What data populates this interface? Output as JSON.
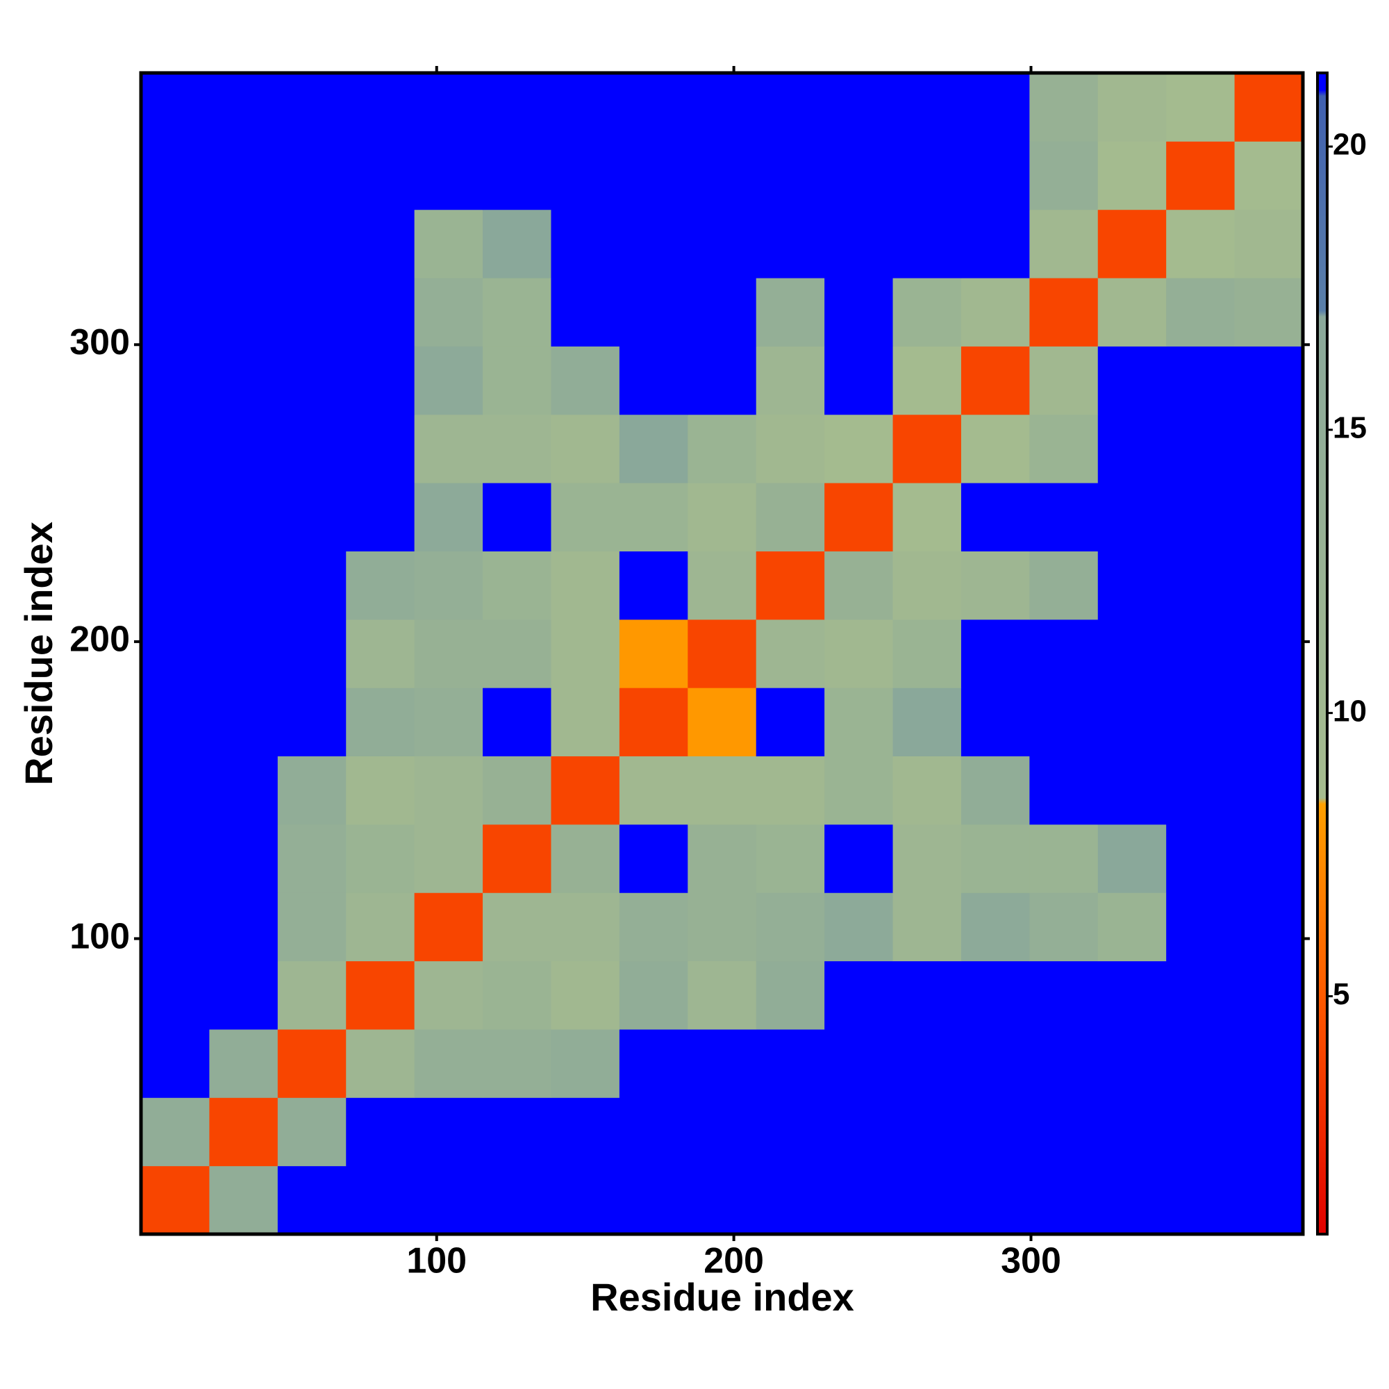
{
  "chart_data": {
    "type": "heatmap",
    "x_label": "Residue index",
    "y_label": "Residue index",
    "xlim": [
      0.5,
      391.5
    ],
    "ylim": [
      0.5,
      391.5
    ],
    "xticks": [
      100,
      200,
      300
    ],
    "yticks": [
      100,
      200,
      300
    ],
    "xbins": [
      0.5,
      23.5,
      46.5,
      69.5,
      92.5,
      115.5,
      138.5,
      161.5,
      184.5,
      207.5,
      230.5,
      253.5,
      276.5,
      299.5,
      322.5,
      345.5,
      368.5,
      391.5
    ],
    "ybins": [
      0.5,
      23.5,
      46.5,
      69.5,
      92.5,
      115.5,
      138.5,
      161.5,
      184.5,
      207.5,
      230.5,
      253.5,
      276.5,
      299.5,
      322.5,
      345.5,
      368.5,
      391.5
    ],
    "values": [
      [
        4,
        15,
        21,
        21,
        21,
        21,
        21,
        21,
        21,
        21,
        21,
        21,
        21,
        21,
        21,
        21,
        21
      ],
      [
        15,
        4,
        15,
        21,
        21,
        21,
        21,
        21,
        21,
        21,
        21,
        21,
        21,
        21,
        21,
        21,
        21
      ],
      [
        21,
        15,
        4,
        11,
        14,
        14,
        15,
        21,
        21,
        21,
        21,
        21,
        21,
        21,
        21,
        21,
        21
      ],
      [
        21,
        21,
        11,
        4,
        11,
        12,
        10,
        15,
        11,
        15,
        21,
        21,
        21,
        21,
        21,
        21,
        21
      ],
      [
        21,
        21,
        14,
        11,
        4,
        11,
        11,
        14,
        13,
        14,
        16,
        11,
        16,
        14,
        12,
        21,
        21
      ],
      [
        21,
        21,
        14,
        12,
        11,
        4,
        13,
        21,
        13,
        12,
        21,
        11,
        12,
        12,
        17,
        21,
        21
      ],
      [
        21,
        21,
        15,
        10,
        11,
        13,
        4,
        10,
        10,
        10,
        12,
        10,
        15,
        21,
        21,
        21,
        21
      ],
      [
        21,
        21,
        21,
        15,
        14,
        21,
        10,
        4,
        8,
        21,
        12,
        17,
        21,
        21,
        21,
        21,
        21
      ],
      [
        21,
        21,
        21,
        11,
        13,
        13,
        10,
        8,
        4,
        11,
        10,
        12,
        21,
        21,
        21,
        21,
        21
      ],
      [
        21,
        21,
        21,
        15,
        14,
        12,
        10,
        21,
        11,
        4,
        13,
        10,
        11,
        14,
        21,
        21,
        21
      ],
      [
        21,
        21,
        21,
        21,
        16,
        21,
        12,
        12,
        10,
        13,
        4,
        9,
        21,
        21,
        21,
        21,
        21
      ],
      [
        21,
        21,
        21,
        21,
        11,
        11,
        10,
        17,
        12,
        10,
        9,
        4,
        9,
        12,
        21,
        21,
        21
      ],
      [
        21,
        21,
        21,
        21,
        16,
        12,
        15,
        21,
        21,
        11,
        21,
        9,
        4,
        10,
        21,
        21,
        21
      ],
      [
        21,
        21,
        21,
        21,
        14,
        12,
        21,
        21,
        21,
        14,
        21,
        12,
        10,
        4,
        10,
        14,
        13
      ],
      [
        21,
        21,
        21,
        21,
        12,
        17,
        21,
        21,
        21,
        21,
        21,
        21,
        21,
        10,
        4,
        9,
        10
      ],
      [
        21,
        21,
        21,
        21,
        21,
        21,
        21,
        21,
        21,
        21,
        21,
        21,
        21,
        14,
        9,
        4,
        9
      ],
      [
        21,
        21,
        21,
        21,
        21,
        21,
        21,
        21,
        21,
        21,
        21,
        21,
        21,
        13,
        10,
        9,
        4
      ]
    ],
    "clim": [
      0.8,
      21.3
    ],
    "cticks": [
      5,
      10,
      15,
      20
    ],
    "colorscale": [
      {
        "value": 0.8,
        "color": "#e00000"
      },
      {
        "value": 5,
        "color": "#ff5a00"
      },
      {
        "value": 8.4,
        "color": "#ffa000"
      },
      {
        "value": 8.5,
        "color": "#a6bc8e"
      },
      {
        "value": 17,
        "color": "#8aa89a"
      },
      {
        "value": 17.1,
        "color": "#5a7fa8"
      },
      {
        "value": 20.9,
        "color": "#4060b0"
      },
      {
        "value": 21,
        "color": "#0000ff"
      },
      {
        "value": 21.3,
        "color": "#0000ff"
      }
    ]
  }
}
